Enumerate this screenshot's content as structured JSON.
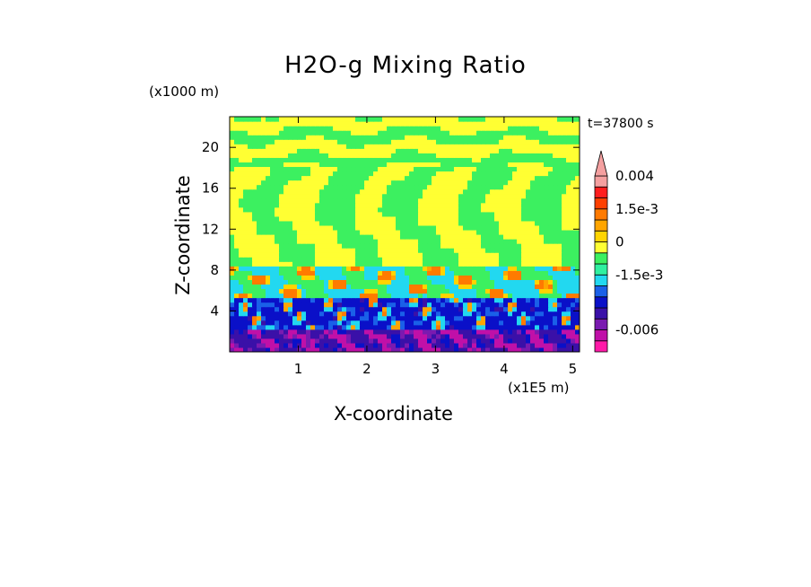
{
  "chart_data": {
    "type": "heatmap",
    "title": "H2O-g Mixing Ratio",
    "xlabel": "X-coordinate",
    "ylabel": "Z-coordinate",
    "x_unit_label": "(x1E5 m)",
    "y_unit_label": "(x1000 m)",
    "time_label": "t=37800 s",
    "xlim": [
      0,
      5.1
    ],
    "ylim": [
      0,
      23
    ],
    "x_ticks": [
      1,
      2,
      3,
      4,
      5
    ],
    "y_ticks": [
      4,
      8,
      12,
      16,
      20
    ],
    "colorbar": {
      "levels": [
        -0.008,
        -0.006,
        -0.004,
        -0.003,
        -0.0025,
        -0.002,
        -0.0015,
        -0.001,
        -0.0005,
        0,
        0.0005,
        0.001,
        0.0015,
        0.002,
        0.003,
        0.004
      ],
      "colors": [
        "#ff1aa8",
        "#c010a8",
        "#7a1ab0",
        "#3a10a8",
        "#0a10c8",
        "#1a60e8",
        "#22d8f0",
        "#30f0a0",
        "#3cf060",
        "#ffff33",
        "#ffd400",
        "#ffa500",
        "#ff7a00",
        "#ff4000",
        "#ff1e1e",
        "#f4a0a0"
      ],
      "tick_labels": [
        {
          "value": 0.004,
          "text": "0.004"
        },
        {
          "value": 0.0015,
          "text": "1.5e-3"
        },
        {
          "value": 0,
          "text": "0"
        },
        {
          "value": -0.0015,
          "text": "-1.5e-3"
        },
        {
          "value": -0.006,
          "text": "-0.006"
        }
      ],
      "extend": "max"
    },
    "layers": [
      {
        "z_range": [
          0,
          2
        ],
        "dominant": "purple / dark blue"
      },
      {
        "z_range": [
          2,
          5
        ],
        "dominant": "blue with cyan and orange plumes"
      },
      {
        "z_range": [
          5,
          8
        ],
        "dominant": "cyan / light green with orange patches"
      },
      {
        "z_range": [
          8,
          18
        ],
        "dominant": "yellow and green plumes"
      },
      {
        "z_range": [
          18,
          23
        ],
        "dominant": "yellow and green bands"
      }
    ]
  }
}
